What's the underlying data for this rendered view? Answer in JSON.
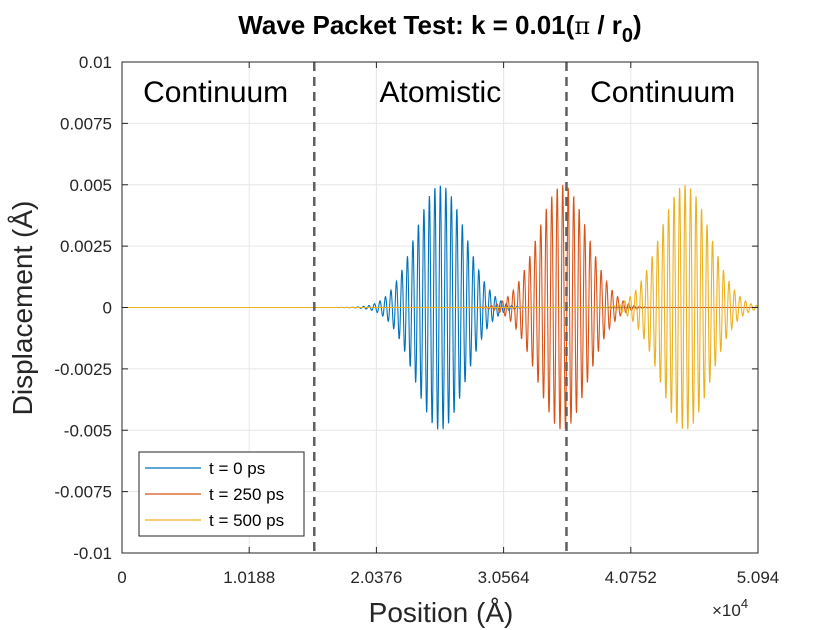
{
  "chart_data": {
    "type": "line",
    "title_main": "Wave Packet Test: k = 0.01(",
    "title_pi": "π",
    "title_slash": " / r",
    "title_sub": "0",
    "title_close": ")",
    "xlabel": "Position (Å)",
    "ylabel": "Displacement (Å)",
    "x_multiplier_base": "×10",
    "x_multiplier_exp": "4",
    "xlim": [
      0,
      5.094
    ],
    "ylim": [
      -0.01,
      0.01
    ],
    "xticks": [
      0,
      1.0188,
      2.0376,
      3.0564,
      4.0752,
      5.094
    ],
    "xtick_labels": [
      "0",
      "1.0188",
      "2.0376",
      "3.0564",
      "4.0752",
      "5.094"
    ],
    "yticks": [
      0.01,
      0.0075,
      0.005,
      0.0025,
      0,
      -0.0025,
      -0.005,
      -0.0075,
      -0.01
    ],
    "ytick_labels": [
      "0.01",
      "0.0075",
      "0.005",
      "0.0025",
      "0",
      "-0.0025",
      "-0.005",
      "-0.0075",
      "-0.01"
    ],
    "grid": true,
    "region_boundaries_x": [
      1.54,
      3.56
    ],
    "region_labels": [
      {
        "text": "Continuum",
        "x": 0.75
      },
      {
        "text": "Atomistic",
        "x": 2.55
      },
      {
        "text": "Continuum",
        "x": 4.33
      }
    ],
    "legend_position": "bottom-left",
    "series": [
      {
        "name": "t = 0 ps",
        "color": "#0072BD",
        "center": 2.55,
        "amplitude": 0.005,
        "width": 0.2,
        "wavelength": 0.044
      },
      {
        "name": "t = 250 ps",
        "color": "#D95319",
        "center": 3.53,
        "amplitude": 0.005,
        "width": 0.2,
        "wavelength": 0.044
      },
      {
        "name": "t = 500 ps",
        "color": "#EDB120",
        "center": 4.51,
        "amplitude": 0.005,
        "width": 0.2,
        "wavelength": 0.044
      }
    ]
  }
}
